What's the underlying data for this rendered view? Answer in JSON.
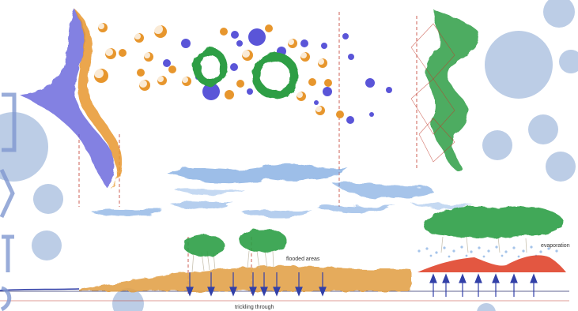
{
  "labels": {
    "flooded_areas": "flooded areas",
    "evaporation": "evaporation",
    "trickling_through": "trickling through"
  },
  "colors": {
    "background": "#ffffff",
    "pale_blue_circle": "#bccde6",
    "violet": "#5a55d8",
    "orange": "#e7962d",
    "green": "#2f9e45",
    "water_blue": "#5b93d9",
    "red_mound": "#e0452c",
    "sand": "#e2a24a",
    "arrow_blue": "#3240a8",
    "guide_red": "#c0392b"
  }
}
